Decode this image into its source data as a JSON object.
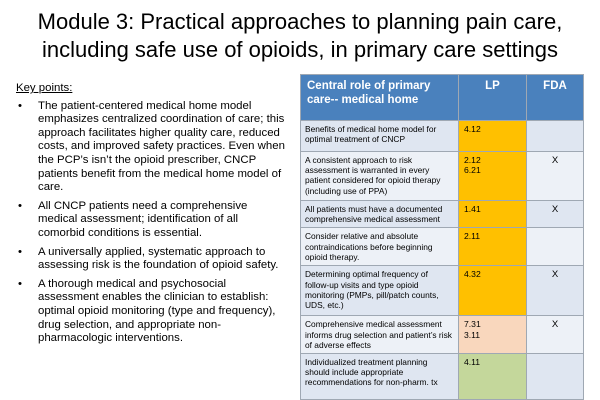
{
  "title": {
    "line1": "Module 3: Practical approaches to planning pain care,",
    "line2": "including safe use of opioids, in primary care settings"
  },
  "key_points": {
    "heading": "Key points:",
    "items": [
      "The patient-centered medical home model emphasizes centralized coordination of care; this approach facilitates higher quality care, reduced costs, and improved safety practices. Even when the PCP’s isn’t the opioid prescriber, CNCP patients benefit from the medical home model of care.",
      "All CNCP patients need a comprehensive medical assessment; identification of all comorbid conditions is essential.",
      "A universally applied, systematic approach to assessing risk is the foundation of opioid safety.",
      "A thorough medical and psychosocial assessment enables the clinician to establish: optimal opioid monitoring (type and frequency), drug selection, and appropriate non-pharmacologic interventions."
    ]
  },
  "table": {
    "headers": {
      "topic": "Central role of primary care-- medical home",
      "lp": "LP",
      "fda": "FDA"
    },
    "colors": {
      "header": "#4a81bd",
      "lp_orange": "#ffc000",
      "lp_peach": "#f9d7bd",
      "lp_green": "#c4d79b"
    },
    "rows": [
      {
        "desc": "Benefits of medical home model for optimal treatment of CNCP",
        "lp": "4.12",
        "fda": ""
      },
      {
        "desc": "A consistent approach to risk assessment is warranted in every patient considered for opioid therapy (including use of PPA)",
        "lp": "2.12\n6.21",
        "fda": "X"
      },
      {
        "desc": "All patients must have a documented comprehensive medical assessment",
        "lp": "1.41",
        "fda": "X"
      },
      {
        "desc": "Consider relative and absolute contraindications before beginning opioid therapy.",
        "lp": "2.11",
        "fda": ""
      },
      {
        "desc": "Determining optimal frequency of follow-up visits and type opioid monitoring (PMPs, pill/patch counts, UDS, etc.)",
        "lp": "4.32",
        "fda": "X"
      },
      {
        "desc": "Comprehensive medical assessment informs drug selection and patient’s risk of adverse effects",
        "lp": "7.31\n3.11",
        "fda": "X"
      },
      {
        "desc": "Individualized treatment planning should include appropriate recommendations for non-pharm. tx",
        "lp": "4.11",
        "fda": ""
      }
    ]
  }
}
